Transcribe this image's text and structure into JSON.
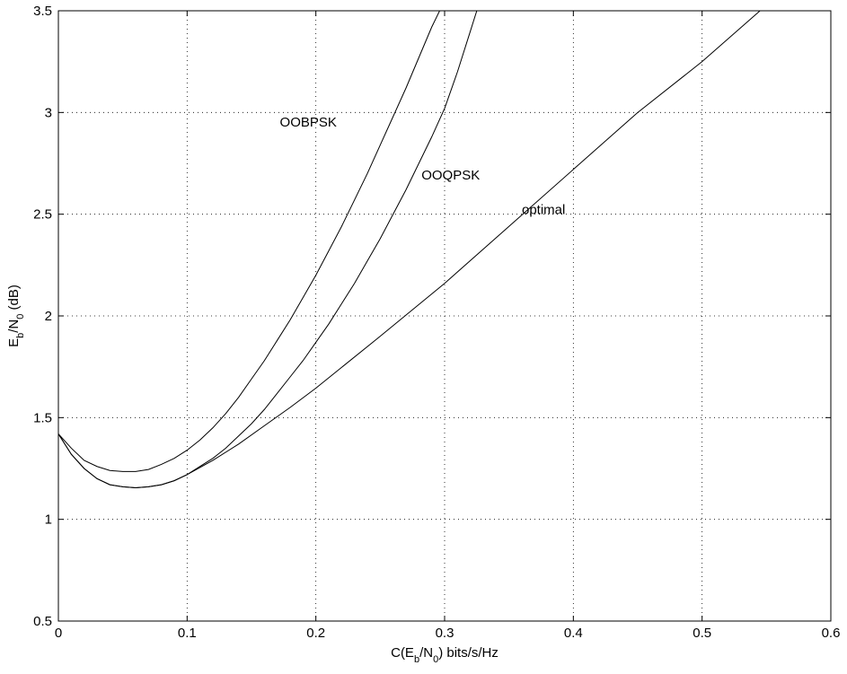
{
  "chart_data": {
    "type": "line",
    "xlabel": "C(E_b/N_0) bits/s/Hz",
    "ylabel": "E_b/N_0 (dB)",
    "xlim": [
      0,
      0.6
    ],
    "ylim": [
      0.5,
      3.5
    ],
    "xticks": [
      "0",
      "0.1",
      "0.2",
      "0.3",
      "0.4",
      "0.5",
      "0.6"
    ],
    "yticks": [
      "0.5",
      "1",
      "1.5",
      "2",
      "2.5",
      "3",
      "3.5"
    ],
    "grid": true,
    "series": [
      {
        "name": "OOBPSK",
        "x": [
          0,
          0.01,
          0.02,
          0.03,
          0.04,
          0.05,
          0.06,
          0.07,
          0.08,
          0.09,
          0.1,
          0.11,
          0.12,
          0.13,
          0.14,
          0.15,
          0.16,
          0.17,
          0.18,
          0.19,
          0.2,
          0.21,
          0.22,
          0.23,
          0.24,
          0.25,
          0.26,
          0.27,
          0.28,
          0.29,
          0.3
        ],
        "y": [
          1.42,
          1.35,
          1.29,
          1.26,
          1.24,
          1.235,
          1.235,
          1.245,
          1.27,
          1.3,
          1.34,
          1.39,
          1.45,
          1.52,
          1.6,
          1.69,
          1.78,
          1.88,
          1.98,
          2.09,
          2.2,
          2.32,
          2.44,
          2.57,
          2.7,
          2.84,
          2.98,
          3.12,
          3.27,
          3.42,
          3.55
        ]
      },
      {
        "name": "OOQPSK",
        "x": [
          0,
          0.01,
          0.02,
          0.03,
          0.04,
          0.05,
          0.06,
          0.07,
          0.08,
          0.09,
          0.1,
          0.11,
          0.12,
          0.13,
          0.14,
          0.15,
          0.16,
          0.17,
          0.18,
          0.19,
          0.2,
          0.21,
          0.22,
          0.23,
          0.24,
          0.25,
          0.26,
          0.27,
          0.28,
          0.29,
          0.3,
          0.31,
          0.32,
          0.325
        ],
        "y": [
          1.42,
          1.32,
          1.25,
          1.2,
          1.17,
          1.16,
          1.155,
          1.16,
          1.17,
          1.19,
          1.22,
          1.26,
          1.3,
          1.35,
          1.41,
          1.47,
          1.54,
          1.62,
          1.7,
          1.78,
          1.87,
          1.96,
          2.06,
          2.16,
          2.27,
          2.38,
          2.5,
          2.62,
          2.75,
          2.88,
          3.02,
          3.2,
          3.4,
          3.5
        ]
      },
      {
        "name": "optimal",
        "x": [
          0,
          0.01,
          0.02,
          0.03,
          0.04,
          0.05,
          0.06,
          0.07,
          0.08,
          0.09,
          0.1,
          0.12,
          0.14,
          0.16,
          0.18,
          0.2,
          0.25,
          0.3,
          0.35,
          0.4,
          0.45,
          0.5,
          0.545
        ],
        "y": [
          1.42,
          1.32,
          1.25,
          1.2,
          1.17,
          1.16,
          1.155,
          1.16,
          1.17,
          1.19,
          1.22,
          1.29,
          1.37,
          1.46,
          1.55,
          1.645,
          1.9,
          2.16,
          2.44,
          2.72,
          3.0,
          3.25,
          3.5
        ]
      }
    ],
    "annotations": [
      {
        "text": "OOBPSK",
        "x": 0.172,
        "y": 2.93
      },
      {
        "text": "OOQPSK",
        "x": 0.282,
        "y": 2.67
      },
      {
        "text": "optimal",
        "x": 0.36,
        "y": 2.5
      }
    ]
  }
}
